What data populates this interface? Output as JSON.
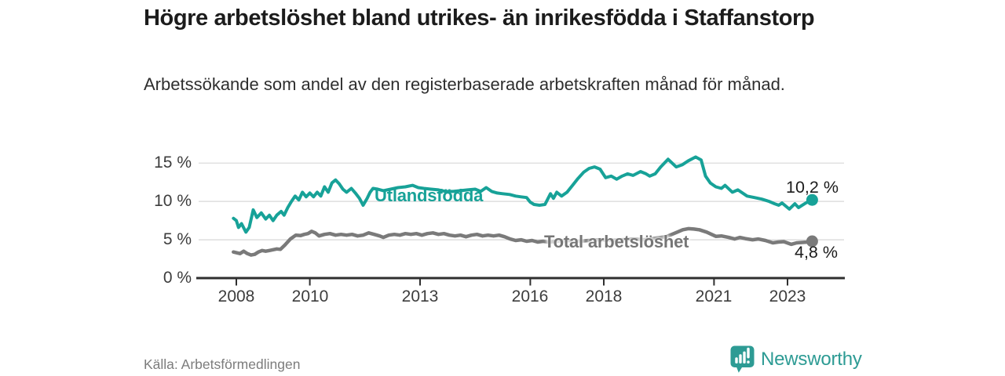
{
  "source": "Källa: Arbetsförmedlingen",
  "logo": {
    "text": "Newsworthy"
  },
  "colors": {
    "accent_teal": "#17a298",
    "line_gray": "#7a7a7a",
    "grid": "#d7d7d7",
    "axis": "#2f2f2f",
    "logo_teal": "#2d9b94"
  },
  "chart_data": {
    "type": "line",
    "title": "Högre arbetslöshet bland utrikes- än inrikesfödda i Staffanstorp",
    "subtitle": "Arbetssökande som andel av den registerbaserade arbetskraften månad för månad.",
    "xlabel": "",
    "ylabel": "",
    "grid": "horizontal",
    "legend_position": "inline-labels",
    "x_domain": [
      2007.0,
      2024.5
    ],
    "y_domain": [
      0,
      16.5
    ],
    "y_ticks": [
      {
        "value": 0,
        "label": "0 %"
      },
      {
        "value": 5,
        "label": "5 %"
      },
      {
        "value": 10,
        "label": "10 %"
      },
      {
        "value": 15,
        "label": "15 %"
      }
    ],
    "x_ticks": [
      {
        "value": 2008,
        "label": "2008"
      },
      {
        "value": 2010,
        "label": "2010"
      },
      {
        "value": 2013,
        "label": "2013"
      },
      {
        "value": 2016,
        "label": "2016"
      },
      {
        "value": 2018,
        "label": "2018"
      },
      {
        "value": 2021,
        "label": "2021"
      },
      {
        "value": 2023,
        "label": "2023"
      }
    ],
    "series": [
      {
        "id": "utlandsfodda",
        "name": "Utlandsfödda",
        "color": "#17a298",
        "end_value": 10.2,
        "end_label": "10,2 %",
        "points": [
          [
            2007.92,
            7.8
          ],
          [
            2008.0,
            7.5
          ],
          [
            2008.06,
            6.6
          ],
          [
            2008.14,
            7.1
          ],
          [
            2008.26,
            6.0
          ],
          [
            2008.35,
            6.6
          ],
          [
            2008.46,
            8.9
          ],
          [
            2008.56,
            7.9
          ],
          [
            2008.68,
            8.5
          ],
          [
            2008.8,
            7.7
          ],
          [
            2008.9,
            8.2
          ],
          [
            2009.0,
            7.5
          ],
          [
            2009.1,
            8.2
          ],
          [
            2009.22,
            8.7
          ],
          [
            2009.3,
            8.2
          ],
          [
            2009.4,
            9.2
          ],
          [
            2009.5,
            10.0
          ],
          [
            2009.6,
            10.7
          ],
          [
            2009.7,
            10.2
          ],
          [
            2009.8,
            11.2
          ],
          [
            2009.9,
            10.6
          ],
          [
            2010.0,
            11.1
          ],
          [
            2010.1,
            10.6
          ],
          [
            2010.2,
            11.2
          ],
          [
            2010.3,
            10.7
          ],
          [
            2010.4,
            11.9
          ],
          [
            2010.5,
            11.2
          ],
          [
            2010.6,
            12.4
          ],
          [
            2010.7,
            12.8
          ],
          [
            2010.8,
            12.3
          ],
          [
            2010.9,
            11.6
          ],
          [
            2011.0,
            11.2
          ],
          [
            2011.13,
            11.7
          ],
          [
            2011.24,
            11.1
          ],
          [
            2011.35,
            10.4
          ],
          [
            2011.45,
            9.5
          ],
          [
            2011.56,
            10.4
          ],
          [
            2011.64,
            11.2
          ],
          [
            2011.72,
            11.7
          ],
          [
            2011.85,
            11.6
          ],
          [
            2012.0,
            11.4
          ],
          [
            2012.2,
            11.6
          ],
          [
            2012.4,
            11.8
          ],
          [
            2012.6,
            11.9
          ],
          [
            2012.8,
            12.1
          ],
          [
            2012.95,
            11.8
          ],
          [
            2013.1,
            11.7
          ],
          [
            2013.3,
            11.6
          ],
          [
            2013.5,
            11.5
          ],
          [
            2013.7,
            11.3
          ],
          [
            2013.9,
            11.3
          ],
          [
            2014.1,
            11.4
          ],
          [
            2014.3,
            11.5
          ],
          [
            2014.5,
            11.6
          ],
          [
            2014.65,
            11.3
          ],
          [
            2014.8,
            11.8
          ],
          [
            2014.95,
            11.3
          ],
          [
            2015.1,
            11.1
          ],
          [
            2015.25,
            11.0
          ],
          [
            2015.44,
            10.9
          ],
          [
            2015.6,
            10.7
          ],
          [
            2015.75,
            10.6
          ],
          [
            2015.9,
            10.5
          ],
          [
            2016.0,
            9.9
          ],
          [
            2016.1,
            9.6
          ],
          [
            2016.25,
            9.5
          ],
          [
            2016.4,
            9.6
          ],
          [
            2016.55,
            11.0
          ],
          [
            2016.63,
            10.4
          ],
          [
            2016.72,
            11.2
          ],
          [
            2016.85,
            10.7
          ],
          [
            2017.0,
            11.2
          ],
          [
            2017.15,
            12.1
          ],
          [
            2017.3,
            13.0
          ],
          [
            2017.45,
            13.8
          ],
          [
            2017.6,
            14.3
          ],
          [
            2017.75,
            14.5
          ],
          [
            2017.9,
            14.2
          ],
          [
            2018.05,
            13.1
          ],
          [
            2018.2,
            13.3
          ],
          [
            2018.35,
            12.9
          ],
          [
            2018.5,
            13.3
          ],
          [
            2018.65,
            13.6
          ],
          [
            2018.8,
            13.4
          ],
          [
            2019.0,
            13.9
          ],
          [
            2019.15,
            13.6
          ],
          [
            2019.25,
            13.3
          ],
          [
            2019.4,
            13.6
          ],
          [
            2019.55,
            14.5
          ],
          [
            2019.75,
            15.5
          ],
          [
            2019.97,
            14.5
          ],
          [
            2020.14,
            14.8
          ],
          [
            2020.3,
            15.3
          ],
          [
            2020.5,
            15.8
          ],
          [
            2020.65,
            15.4
          ],
          [
            2020.77,
            13.3
          ],
          [
            2020.9,
            12.4
          ],
          [
            2021.05,
            11.9
          ],
          [
            2021.2,
            11.7
          ],
          [
            2021.3,
            12.1
          ],
          [
            2021.5,
            11.2
          ],
          [
            2021.65,
            11.5
          ],
          [
            2021.9,
            10.7
          ],
          [
            2022.1,
            10.5
          ],
          [
            2022.3,
            10.3
          ],
          [
            2022.5,
            10.0
          ],
          [
            2022.65,
            9.7
          ],
          [
            2022.76,
            9.5
          ],
          [
            2022.85,
            9.8
          ],
          [
            2023.05,
            9.0
          ],
          [
            2023.2,
            9.7
          ],
          [
            2023.3,
            9.2
          ],
          [
            2023.5,
            9.8
          ],
          [
            2023.67,
            10.2
          ]
        ]
      },
      {
        "id": "total",
        "name": "Total arbetslöshet",
        "color": "#7a7a7a",
        "end_value": 4.8,
        "end_label": "4,8 %",
        "points": [
          [
            2007.92,
            3.4
          ],
          [
            2008.1,
            3.2
          ],
          [
            2008.2,
            3.5
          ],
          [
            2008.3,
            3.2
          ],
          [
            2008.4,
            3.0
          ],
          [
            2008.5,
            3.1
          ],
          [
            2008.6,
            3.4
          ],
          [
            2008.7,
            3.6
          ],
          [
            2008.8,
            3.5
          ],
          [
            2008.9,
            3.6
          ],
          [
            2009.0,
            3.7
          ],
          [
            2009.1,
            3.8
          ],
          [
            2009.2,
            3.75
          ],
          [
            2009.32,
            4.3
          ],
          [
            2009.47,
            5.1
          ],
          [
            2009.62,
            5.6
          ],
          [
            2009.75,
            5.55
          ],
          [
            2009.85,
            5.7
          ],
          [
            2009.95,
            5.8
          ],
          [
            2010.05,
            6.1
          ],
          [
            2010.15,
            5.9
          ],
          [
            2010.25,
            5.5
          ],
          [
            2010.4,
            5.7
          ],
          [
            2010.55,
            5.8
          ],
          [
            2010.7,
            5.6
          ],
          [
            2010.85,
            5.7
          ],
          [
            2011.0,
            5.6
          ],
          [
            2011.15,
            5.7
          ],
          [
            2011.3,
            5.5
          ],
          [
            2011.45,
            5.6
          ],
          [
            2011.6,
            5.9
          ],
          [
            2011.75,
            5.7
          ],
          [
            2011.9,
            5.5
          ],
          [
            2012.0,
            5.3
          ],
          [
            2012.15,
            5.6
          ],
          [
            2012.3,
            5.7
          ],
          [
            2012.45,
            5.6
          ],
          [
            2012.6,
            5.8
          ],
          [
            2012.75,
            5.7
          ],
          [
            2012.9,
            5.8
          ],
          [
            2013.05,
            5.6
          ],
          [
            2013.2,
            5.8
          ],
          [
            2013.35,
            5.9
          ],
          [
            2013.5,
            5.7
          ],
          [
            2013.65,
            5.8
          ],
          [
            2013.8,
            5.6
          ],
          [
            2013.95,
            5.5
          ],
          [
            2014.1,
            5.6
          ],
          [
            2014.25,
            5.4
          ],
          [
            2014.4,
            5.6
          ],
          [
            2014.55,
            5.7
          ],
          [
            2014.7,
            5.5
          ],
          [
            2014.85,
            5.6
          ],
          [
            2015.0,
            5.5
          ],
          [
            2015.15,
            5.6
          ],
          [
            2015.3,
            5.4
          ],
          [
            2015.45,
            5.1
          ],
          [
            2015.6,
            4.9
          ],
          [
            2015.75,
            5.0
          ],
          [
            2015.9,
            4.8
          ],
          [
            2016.05,
            4.9
          ],
          [
            2016.2,
            4.7
          ],
          [
            2016.35,
            4.8
          ],
          [
            2016.5,
            4.7
          ],
          [
            2016.7,
            4.8
          ],
          [
            2017.0,
            4.9
          ],
          [
            2017.3,
            4.8
          ],
          [
            2017.6,
            4.9
          ],
          [
            2017.9,
            5.0
          ],
          [
            2018.2,
            4.9
          ],
          [
            2018.5,
            5.0
          ],
          [
            2018.8,
            5.1
          ],
          [
            2019.1,
            5.0
          ],
          [
            2019.4,
            5.2
          ],
          [
            2019.7,
            5.4
          ],
          [
            2020.0,
            6.0
          ],
          [
            2020.15,
            6.3
          ],
          [
            2020.3,
            6.45
          ],
          [
            2020.45,
            6.4
          ],
          [
            2020.6,
            6.3
          ],
          [
            2020.8,
            6.0
          ],
          [
            2021.05,
            5.45
          ],
          [
            2021.2,
            5.5
          ],
          [
            2021.4,
            5.3
          ],
          [
            2021.56,
            5.1
          ],
          [
            2021.7,
            5.3
          ],
          [
            2021.85,
            5.15
          ],
          [
            2022.05,
            5.0
          ],
          [
            2022.2,
            5.1
          ],
          [
            2022.4,
            4.9
          ],
          [
            2022.6,
            4.6
          ],
          [
            2022.75,
            4.7
          ],
          [
            2022.9,
            4.75
          ],
          [
            2023.1,
            4.4
          ],
          [
            2023.25,
            4.6
          ],
          [
            2023.4,
            4.65
          ],
          [
            2023.55,
            4.7
          ],
          [
            2023.67,
            4.8
          ]
        ]
      }
    ]
  }
}
